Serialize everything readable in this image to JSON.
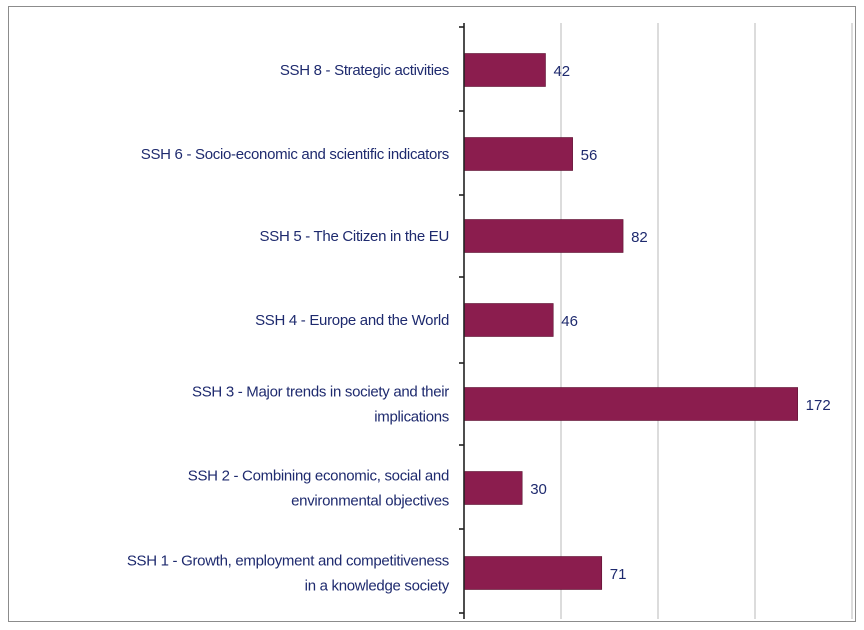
{
  "chart_data": {
    "type": "bar",
    "orientation": "horizontal",
    "categories": [
      "SSH 8 - Strategic activities",
      "SSH 6 - Socio-economic and scientific indicators",
      "SSH 5 - The Citizen in the EU",
      "SSH 4 - Europe and the World",
      "SSH 3 - Major trends in society and their implications",
      "SSH 2 - Combining economic, social and environmental objectives",
      "SSH 1 - Growth, employment and competitiveness in a knowledge society"
    ],
    "category_lines": [
      [
        "SSH 8 - Strategic activities"
      ],
      [
        "SSH 6 - Socio-economic and scientific indicators"
      ],
      [
        "SSH 5 - The Citizen in the EU"
      ],
      [
        "SSH 4 - Europe and the World"
      ],
      [
        "SSH 3 - Major trends in society and their",
        "implications"
      ],
      [
        "SSH 2 - Combining economic, social and",
        "environmental objectives"
      ],
      [
        "SSH 1 - Growth, employment and competitiveness",
        "in a knowledge society"
      ]
    ],
    "values": [
      42,
      56,
      82,
      46,
      172,
      30,
      71
    ],
    "data_labels": [
      "42",
      "56",
      "82",
      "46",
      "172",
      "30",
      "71"
    ],
    "xlim": [
      0,
      200
    ],
    "grid": true,
    "legend": "none",
    "colors": {
      "bar": "#8b1d4e",
      "label_text": "#1e2a6e",
      "grid": "#b8b8b8",
      "axis": "#222222"
    }
  }
}
